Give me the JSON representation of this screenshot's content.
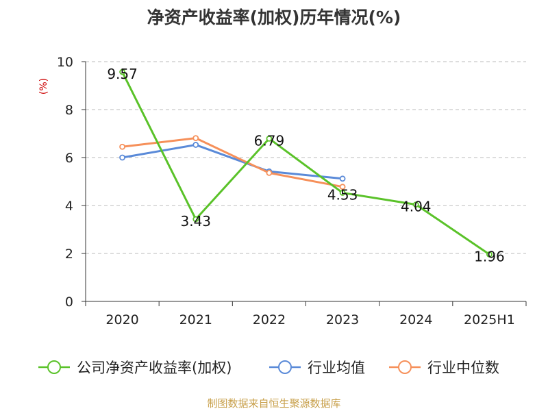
{
  "title": "净资产收益率(加权)历年情况(%)",
  "source": "制图数据来自恒生聚源数据库",
  "chart_data": {
    "type": "line",
    "ylabel": "(%)",
    "ylim": [
      0,
      10
    ],
    "yticks": [
      0,
      2,
      4,
      6,
      8,
      10
    ],
    "categories": [
      "2020",
      "2021",
      "2022",
      "2023",
      "2024",
      "2025H1"
    ],
    "grid": true,
    "legend_position": "bottom",
    "series": [
      {
        "name": "公司净资产收益率(加权)",
        "color": "#5ac229",
        "values": [
          9.57,
          3.43,
          6.79,
          4.53,
          4.04,
          1.96
        ],
        "labels": [
          "9.57",
          "3.43",
          "6.79",
          "4.53",
          "4.04",
          "1.96"
        ]
      },
      {
        "name": "行业均值",
        "color": "#5a8ad8",
        "values": [
          6.0,
          6.53,
          5.42,
          5.12,
          null,
          null
        ]
      },
      {
        "name": "行业中位数",
        "color": "#f6905a",
        "values": [
          6.45,
          6.81,
          5.36,
          4.78,
          null,
          null
        ]
      }
    ]
  }
}
